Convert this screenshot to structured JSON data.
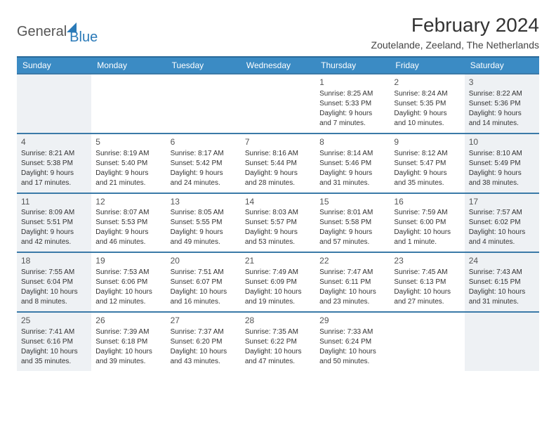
{
  "logo": {
    "text1": "General",
    "text2": "Blue"
  },
  "title": "February 2024",
  "location": "Zoutelande, Zeeland, The Netherlands",
  "colors": {
    "header_bg": "#3b8bc4",
    "row_border": "#3b7aa8",
    "weekend_bg": "#eef1f4",
    "logo_blue": "#2a7ab8"
  },
  "dayNames": [
    "Sunday",
    "Monday",
    "Tuesday",
    "Wednesday",
    "Thursday",
    "Friday",
    "Saturday"
  ],
  "weeks": [
    [
      {
        "n": "",
        "sr": "",
        "ss": "",
        "d1": "",
        "d2": ""
      },
      {
        "n": "",
        "sr": "",
        "ss": "",
        "d1": "",
        "d2": ""
      },
      {
        "n": "",
        "sr": "",
        "ss": "",
        "d1": "",
        "d2": ""
      },
      {
        "n": "",
        "sr": "",
        "ss": "",
        "d1": "",
        "d2": ""
      },
      {
        "n": "1",
        "sr": "Sunrise: 8:25 AM",
        "ss": "Sunset: 5:33 PM",
        "d1": "Daylight: 9 hours",
        "d2": "and 7 minutes."
      },
      {
        "n": "2",
        "sr": "Sunrise: 8:24 AM",
        "ss": "Sunset: 5:35 PM",
        "d1": "Daylight: 9 hours",
        "d2": "and 10 minutes."
      },
      {
        "n": "3",
        "sr": "Sunrise: 8:22 AM",
        "ss": "Sunset: 5:36 PM",
        "d1": "Daylight: 9 hours",
        "d2": "and 14 minutes."
      }
    ],
    [
      {
        "n": "4",
        "sr": "Sunrise: 8:21 AM",
        "ss": "Sunset: 5:38 PM",
        "d1": "Daylight: 9 hours",
        "d2": "and 17 minutes."
      },
      {
        "n": "5",
        "sr": "Sunrise: 8:19 AM",
        "ss": "Sunset: 5:40 PM",
        "d1": "Daylight: 9 hours",
        "d2": "and 21 minutes."
      },
      {
        "n": "6",
        "sr": "Sunrise: 8:17 AM",
        "ss": "Sunset: 5:42 PM",
        "d1": "Daylight: 9 hours",
        "d2": "and 24 minutes."
      },
      {
        "n": "7",
        "sr": "Sunrise: 8:16 AM",
        "ss": "Sunset: 5:44 PM",
        "d1": "Daylight: 9 hours",
        "d2": "and 28 minutes."
      },
      {
        "n": "8",
        "sr": "Sunrise: 8:14 AM",
        "ss": "Sunset: 5:46 PM",
        "d1": "Daylight: 9 hours",
        "d2": "and 31 minutes."
      },
      {
        "n": "9",
        "sr": "Sunrise: 8:12 AM",
        "ss": "Sunset: 5:47 PM",
        "d1": "Daylight: 9 hours",
        "d2": "and 35 minutes."
      },
      {
        "n": "10",
        "sr": "Sunrise: 8:10 AM",
        "ss": "Sunset: 5:49 PM",
        "d1": "Daylight: 9 hours",
        "d2": "and 38 minutes."
      }
    ],
    [
      {
        "n": "11",
        "sr": "Sunrise: 8:09 AM",
        "ss": "Sunset: 5:51 PM",
        "d1": "Daylight: 9 hours",
        "d2": "and 42 minutes."
      },
      {
        "n": "12",
        "sr": "Sunrise: 8:07 AM",
        "ss": "Sunset: 5:53 PM",
        "d1": "Daylight: 9 hours",
        "d2": "and 46 minutes."
      },
      {
        "n": "13",
        "sr": "Sunrise: 8:05 AM",
        "ss": "Sunset: 5:55 PM",
        "d1": "Daylight: 9 hours",
        "d2": "and 49 minutes."
      },
      {
        "n": "14",
        "sr": "Sunrise: 8:03 AM",
        "ss": "Sunset: 5:57 PM",
        "d1": "Daylight: 9 hours",
        "d2": "and 53 minutes."
      },
      {
        "n": "15",
        "sr": "Sunrise: 8:01 AM",
        "ss": "Sunset: 5:58 PM",
        "d1": "Daylight: 9 hours",
        "d2": "and 57 minutes."
      },
      {
        "n": "16",
        "sr": "Sunrise: 7:59 AM",
        "ss": "Sunset: 6:00 PM",
        "d1": "Daylight: 10 hours",
        "d2": "and 1 minute."
      },
      {
        "n": "17",
        "sr": "Sunrise: 7:57 AM",
        "ss": "Sunset: 6:02 PM",
        "d1": "Daylight: 10 hours",
        "d2": "and 4 minutes."
      }
    ],
    [
      {
        "n": "18",
        "sr": "Sunrise: 7:55 AM",
        "ss": "Sunset: 6:04 PM",
        "d1": "Daylight: 10 hours",
        "d2": "and 8 minutes."
      },
      {
        "n": "19",
        "sr": "Sunrise: 7:53 AM",
        "ss": "Sunset: 6:06 PM",
        "d1": "Daylight: 10 hours",
        "d2": "and 12 minutes."
      },
      {
        "n": "20",
        "sr": "Sunrise: 7:51 AM",
        "ss": "Sunset: 6:07 PM",
        "d1": "Daylight: 10 hours",
        "d2": "and 16 minutes."
      },
      {
        "n": "21",
        "sr": "Sunrise: 7:49 AM",
        "ss": "Sunset: 6:09 PM",
        "d1": "Daylight: 10 hours",
        "d2": "and 19 minutes."
      },
      {
        "n": "22",
        "sr": "Sunrise: 7:47 AM",
        "ss": "Sunset: 6:11 PM",
        "d1": "Daylight: 10 hours",
        "d2": "and 23 minutes."
      },
      {
        "n": "23",
        "sr": "Sunrise: 7:45 AM",
        "ss": "Sunset: 6:13 PM",
        "d1": "Daylight: 10 hours",
        "d2": "and 27 minutes."
      },
      {
        "n": "24",
        "sr": "Sunrise: 7:43 AM",
        "ss": "Sunset: 6:15 PM",
        "d1": "Daylight: 10 hours",
        "d2": "and 31 minutes."
      }
    ],
    [
      {
        "n": "25",
        "sr": "Sunrise: 7:41 AM",
        "ss": "Sunset: 6:16 PM",
        "d1": "Daylight: 10 hours",
        "d2": "and 35 minutes."
      },
      {
        "n": "26",
        "sr": "Sunrise: 7:39 AM",
        "ss": "Sunset: 6:18 PM",
        "d1": "Daylight: 10 hours",
        "d2": "and 39 minutes."
      },
      {
        "n": "27",
        "sr": "Sunrise: 7:37 AM",
        "ss": "Sunset: 6:20 PM",
        "d1": "Daylight: 10 hours",
        "d2": "and 43 minutes."
      },
      {
        "n": "28",
        "sr": "Sunrise: 7:35 AM",
        "ss": "Sunset: 6:22 PM",
        "d1": "Daylight: 10 hours",
        "d2": "and 47 minutes."
      },
      {
        "n": "29",
        "sr": "Sunrise: 7:33 AM",
        "ss": "Sunset: 6:24 PM",
        "d1": "Daylight: 10 hours",
        "d2": "and 50 minutes."
      },
      {
        "n": "",
        "sr": "",
        "ss": "",
        "d1": "",
        "d2": ""
      },
      {
        "n": "",
        "sr": "",
        "ss": "",
        "d1": "",
        "d2": ""
      }
    ]
  ]
}
